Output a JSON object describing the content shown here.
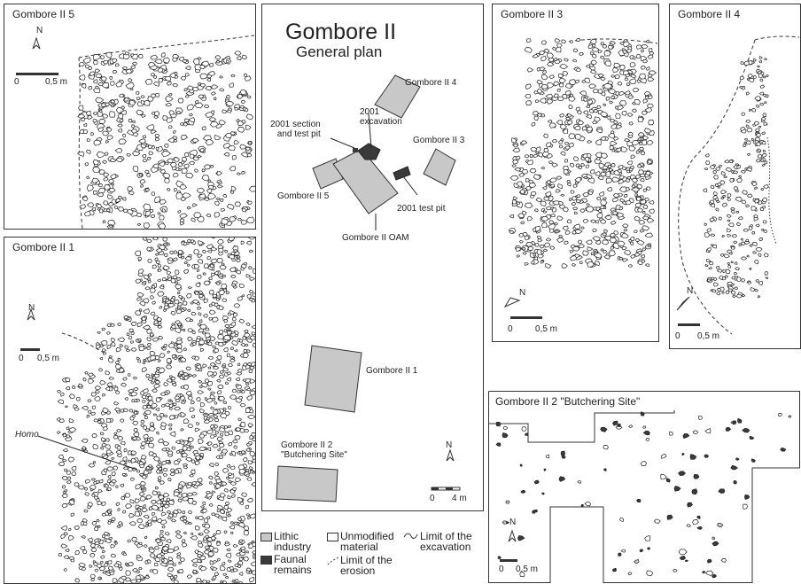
{
  "panels": {
    "g5": {
      "title": "Gombore II 5",
      "scale_start": "0",
      "scale_end": "0,5 m",
      "north": "N"
    },
    "g1": {
      "title": "Gombore II 1",
      "scale_start": "0",
      "scale_end": "0,5 m",
      "north": "N",
      "homo_label": "Homo"
    },
    "g3": {
      "title": "Gombore II  3",
      "scale_start": "0",
      "scale_end": "0,5 m",
      "north": "N"
    },
    "g4": {
      "title": "Gombore II 4",
      "scale_start": "0",
      "scale_end": "0,5 m",
      "north": "N"
    },
    "g2": {
      "title": "Gombore II 2 \"Butchering Site\"",
      "scale_start": "0",
      "scale_end": "0,5 m",
      "north": "N"
    }
  },
  "general_plan": {
    "title": "Gombore II",
    "subtitle": "General plan",
    "labels": {
      "g4": "Gombore II 4",
      "excavation_2001": "2001\nexcavation",
      "section_2001": "2001 section\nand test pit",
      "g3": "Gombore II 3",
      "g5": "Gombore II 5",
      "testpit_2001": "2001 test pit",
      "oam": "Gombore II OAM",
      "g1": "Gombore II 1",
      "g2": "Gombore II 2\n\"Butchering Site\""
    },
    "north": "N",
    "scale_start": "0",
    "scale_end": "4 m"
  },
  "legend": {
    "lithic": "Lithic\nindustry",
    "faunal": "Faunal\nremains",
    "unmodified": "Unmodified\nmaterial",
    "erosion": "Limit of the\nerosion",
    "excavation_limit": "Limit of the\nexcavation"
  },
  "colors": {
    "lithic": "#c8c8c8",
    "faunal": "#3a3a3a",
    "unmodified": "#ffffff",
    "line": "#333333"
  }
}
